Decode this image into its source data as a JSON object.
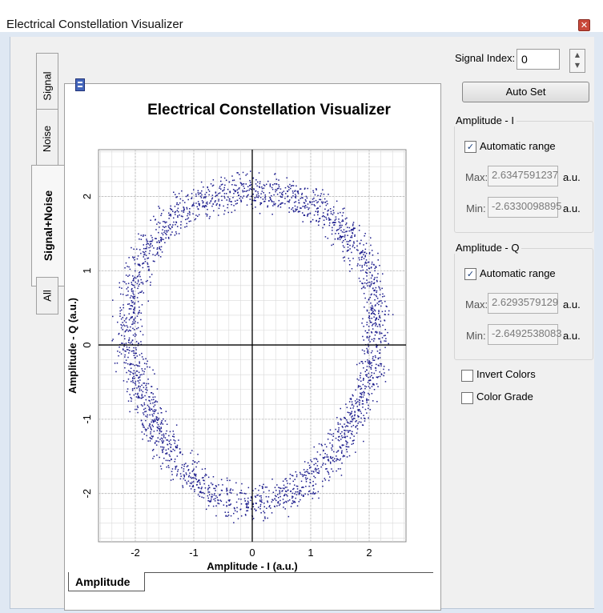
{
  "window": {
    "title": "Electrical Constellation Visualizer",
    "close_glyph": "✕"
  },
  "side_tabs": [
    {
      "label": "Signal",
      "active": false
    },
    {
      "label": "Noise",
      "active": false
    },
    {
      "label": "Signal+Noise",
      "active": true
    },
    {
      "label": "All",
      "active": false
    }
  ],
  "plot": {
    "title": "Electrical Constellation Visualizer",
    "bottom_tab": "Amplitude",
    "point_color": "#1a1a8c"
  },
  "chart_data": {
    "type": "scatter",
    "title": "Electrical Constellation Visualizer",
    "xlabel": "Amplitude - I (a.u.)",
    "ylabel": "Amplitude - Q (a.u.)",
    "xlim": [
      -2.63,
      2.63
    ],
    "ylim": [
      -2.65,
      2.63
    ],
    "xticks": [
      "-2",
      "-1",
      "0",
      "1",
      "2"
    ],
    "yticks": [
      "-2",
      "-1",
      "0",
      "1",
      "2"
    ],
    "grid": true,
    "shape": "ring",
    "ring_radius": 2.1,
    "ring_spread": 0.15,
    "ring_center": [
      0.0,
      0.05
    ]
  },
  "controls": {
    "signal_index_label": "Signal Index:",
    "signal_index_value": "0",
    "auto_set_label": "Auto Set",
    "amplitude_i": {
      "group_label": "Amplitude - I",
      "automatic_label": "Automatic range",
      "automatic_checked": true,
      "max_label": "Max:",
      "max_value": "2.6347591237",
      "min_label": "Min:",
      "min_value": "-2.6330098895",
      "unit": "a.u."
    },
    "amplitude_q": {
      "group_label": "Amplitude - Q",
      "automatic_label": "Automatic range",
      "automatic_checked": true,
      "max_label": "Max:",
      "max_value": "2.6293579129",
      "min_label": "Min:",
      "min_value": "-2.6492538083",
      "unit": "a.u."
    },
    "invert_colors_label": "Invert Colors",
    "invert_colors_checked": false,
    "color_grade_label": "Color Grade",
    "color_grade_checked": false
  }
}
